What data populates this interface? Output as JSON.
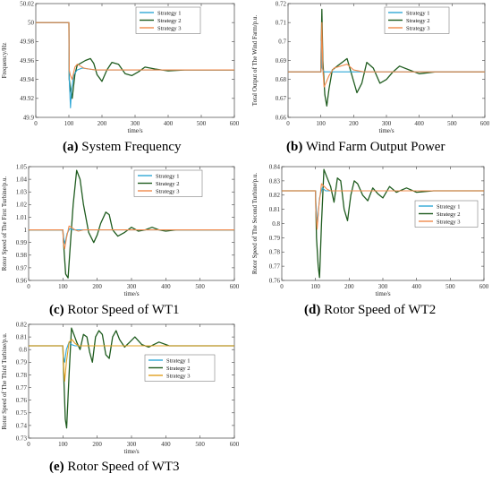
{
  "chart_data": [
    {
      "id": "a",
      "type": "line",
      "caption_letter": "(a)",
      "caption_text": "System Frequency",
      "title": "",
      "xlabel": "time/s",
      "ylabel": "Frequency/Hz",
      "xlim": [
        0,
        600
      ],
      "ylim": [
        49.9,
        50.02
      ],
      "xticks": [
        0,
        100,
        200,
        300,
        400,
        500,
        600
      ],
      "yticks": [
        49.9,
        49.92,
        49.94,
        49.96,
        49.98,
        50,
        50.02
      ],
      "ytick_labels": [
        "49.9",
        "49.92",
        "49.94",
        "49.96",
        "49.98",
        "50",
        "50.02"
      ],
      "grid": false,
      "legend_position": "top-right",
      "colors": [
        "#2fa7d6",
        "#1f5c1f",
        "#f08a4b"
      ],
      "series": [
        {
          "name": "Strategy 1",
          "x": [
            0,
            100,
            101,
            105,
            108,
            115,
            125,
            140,
            160,
            180,
            200,
            230,
            300,
            600
          ],
          "y": [
            50,
            50,
            49.94,
            49.91,
            49.93,
            49.945,
            49.95,
            49.952,
            49.951,
            49.95,
            49.95,
            49.95,
            49.95,
            49.95
          ]
        },
        {
          "name": "Strategy 2",
          "x": [
            0,
            100,
            101,
            105,
            110,
            118,
            125,
            135,
            150,
            165,
            175,
            185,
            200,
            215,
            230,
            250,
            270,
            290,
            310,
            330,
            360,
            400,
            450,
            500,
            600
          ],
          "y": [
            50,
            50,
            49.94,
            49.93,
            49.92,
            49.945,
            49.955,
            49.957,
            49.96,
            49.962,
            49.957,
            49.945,
            49.938,
            49.95,
            49.958,
            49.956,
            49.946,
            49.944,
            49.948,
            49.953,
            49.951,
            49.949,
            49.95,
            49.95,
            49.95
          ]
        },
        {
          "name": "Strategy 3",
          "x": [
            0,
            100,
            101,
            104,
            110,
            118,
            125,
            135,
            145,
            160,
            180,
            200,
            300,
            600
          ],
          "y": [
            50,
            50,
            49.95,
            49.945,
            49.94,
            49.953,
            49.956,
            49.954,
            49.952,
            49.951,
            49.95,
            49.95,
            49.95,
            49.95
          ]
        }
      ]
    },
    {
      "id": "b",
      "type": "line",
      "caption_letter": "(b)",
      "caption_text": "Wind Farm Output Power",
      "title": "",
      "xlabel": "time/s",
      "ylabel": "Total Output of The Wind Farm/p.u.",
      "xlim": [
        0,
        600
      ],
      "ylim": [
        0.66,
        0.72
      ],
      "xticks": [
        0,
        100,
        200,
        300,
        400,
        500,
        600
      ],
      "yticks": [
        0.66,
        0.67,
        0.68,
        0.69,
        0.7,
        0.71,
        0.72
      ],
      "ytick_labels": [
        "0.66",
        "0.67",
        "0.68",
        "0.69",
        "0.7",
        "0.71",
        "0.72"
      ],
      "grid": false,
      "legend_position": "top-right",
      "colors": [
        "#2fa7d6",
        "#1f5c1f",
        "#f08a4b"
      ],
      "series": [
        {
          "name": "Strategy 1",
          "x": [
            0,
            100,
            101,
            104,
            110,
            120,
            140,
            600
          ],
          "y": [
            0.684,
            0.684,
            0.7,
            0.686,
            0.684,
            0.684,
            0.684,
            0.684
          ]
        },
        {
          "name": "Strategy 2",
          "x": [
            0,
            100,
            103,
            106,
            112,
            118,
            125,
            135,
            150,
            165,
            180,
            195,
            210,
            225,
            240,
            260,
            280,
            300,
            320,
            340,
            370,
            400,
            450,
            500,
            600
          ],
          "y": [
            0.684,
            0.684,
            0.717,
            0.69,
            0.672,
            0.666,
            0.675,
            0.685,
            0.687,
            0.689,
            0.691,
            0.682,
            0.673,
            0.678,
            0.689,
            0.686,
            0.678,
            0.68,
            0.684,
            0.687,
            0.685,
            0.683,
            0.684,
            0.684,
            0.684
          ]
        },
        {
          "name": "Strategy 3",
          "x": [
            0,
            100,
            103,
            106,
            110,
            115,
            125,
            140,
            160,
            180,
            200,
            230,
            300,
            600
          ],
          "y": [
            0.684,
            0.684,
            0.71,
            0.685,
            0.676,
            0.678,
            0.682,
            0.686,
            0.687,
            0.688,
            0.685,
            0.684,
            0.684,
            0.684
          ]
        }
      ]
    },
    {
      "id": "c",
      "type": "line",
      "caption_letter": "(c)",
      "caption_text": "Rotor Speed of WT1",
      "title": "",
      "xlabel": "time/s",
      "ylabel": "Rotor Speed of The First Turbine/p.u.",
      "xlim": [
        0,
        600
      ],
      "ylim": [
        0.96,
        1.05
      ],
      "xticks": [
        0,
        100,
        200,
        300,
        400,
        500,
        600
      ],
      "yticks": [
        0.96,
        0.97,
        0.98,
        0.99,
        1,
        1.01,
        1.02,
        1.03,
        1.04,
        1.05
      ],
      "ytick_labels": [
        "0.96",
        "0.97",
        "0.98",
        "0.99",
        "1",
        "1.01",
        "1.02",
        "1.03",
        "1.04",
        "1.05"
      ],
      "grid": false,
      "legend_position": "top-right",
      "colors": [
        "#2fa7d6",
        "#1f5c1f",
        "#f08a4b"
      ],
      "series": [
        {
          "name": "Strategy 1",
          "x": [
            0,
            100,
            101,
            106,
            112,
            120,
            130,
            600
          ],
          "y": [
            1,
            1,
            0.995,
            0.989,
            0.997,
            1.001,
            1,
            1
          ]
        },
        {
          "name": "Strategy 2",
          "x": [
            0,
            100,
            103,
            108,
            115,
            122,
            130,
            140,
            150,
            160,
            175,
            190,
            200,
            210,
            225,
            235,
            245,
            260,
            280,
            300,
            320,
            340,
            360,
            380,
            400,
            430,
            460,
            500,
            600
          ],
          "y": [
            1,
            1,
            0.985,
            0.965,
            0.962,
            0.99,
            1.02,
            1.047,
            1.04,
            1.02,
            0.998,
            0.99,
            0.996,
            1.005,
            1.014,
            1.012,
            1.0,
            0.995,
            0.998,
            1.002,
            0.999,
            1.0,
            1.002,
            1.0,
            0.999,
            1.0,
            1.0,
            1.0,
            1.0
          ]
        },
        {
          "name": "Strategy 3",
          "x": [
            0,
            100,
            101,
            105,
            110,
            118,
            125,
            135,
            145,
            160,
            180,
            600
          ],
          "y": [
            1,
            1,
            0.99,
            0.985,
            0.993,
            1.003,
            1.002,
            1.0,
            0.999,
            1.0,
            1.0,
            1.0
          ]
        }
      ]
    },
    {
      "id": "d",
      "type": "line",
      "caption_letter": "(d)",
      "caption_text": "Rotor Speed of WT2",
      "title": "",
      "xlabel": "time/s",
      "ylabel": "Rotor Speed of The Second Turbine/p.u.",
      "xlim": [
        0,
        600
      ],
      "ylim": [
        0.76,
        0.84
      ],
      "xticks": [
        0,
        100,
        200,
        300,
        400,
        500,
        600
      ],
      "yticks": [
        0.76,
        0.77,
        0.78,
        0.79,
        0.8,
        0.81,
        0.82,
        0.83,
        0.84
      ],
      "ytick_labels": [
        "0.76",
        "0.77",
        "0.78",
        "0.79",
        "0.8",
        "0.81",
        "0.82",
        "0.83",
        "0.84"
      ],
      "grid": false,
      "legend_position": "right",
      "colors": [
        "#2fa7d6",
        "#1f5c1f",
        "#f08a4b"
      ],
      "series": [
        {
          "name": "Strategy 1",
          "x": [
            0,
            100,
            101,
            106,
            112,
            120,
            130,
            600
          ],
          "y": [
            0.823,
            0.823,
            0.815,
            0.8,
            0.818,
            0.825,
            0.823,
            0.823
          ]
        },
        {
          "name": "Strategy 2",
          "x": [
            0,
            100,
            103,
            108,
            112,
            118,
            125,
            135,
            145,
            155,
            165,
            175,
            185,
            195,
            205,
            215,
            225,
            240,
            255,
            270,
            285,
            300,
            320,
            340,
            370,
            400,
            450,
            500,
            600
          ],
          "y": [
            0.823,
            0.823,
            0.79,
            0.77,
            0.762,
            0.8,
            0.838,
            0.832,
            0.826,
            0.815,
            0.832,
            0.83,
            0.81,
            0.802,
            0.82,
            0.83,
            0.828,
            0.82,
            0.816,
            0.825,
            0.821,
            0.818,
            0.826,
            0.822,
            0.825,
            0.822,
            0.823,
            0.823,
            0.823
          ]
        },
        {
          "name": "Strategy 3",
          "x": [
            0,
            100,
            101,
            105,
            110,
            118,
            126,
            135,
            145,
            160,
            180,
            600
          ],
          "y": [
            0.823,
            0.823,
            0.81,
            0.796,
            0.812,
            0.828,
            0.826,
            0.824,
            0.823,
            0.823,
            0.823,
            0.823
          ]
        }
      ]
    },
    {
      "id": "e",
      "type": "line",
      "caption_letter": "(e)",
      "caption_text": "Rotor Speed of WT3",
      "title": "",
      "xlabel": "time/s",
      "ylabel": "Rotor Speed of The Third Turbine/p.u.",
      "xlim": [
        0,
        600
      ],
      "ylim": [
        0.73,
        0.82
      ],
      "xticks": [
        0,
        100,
        200,
        300,
        400,
        500,
        600
      ],
      "yticks": [
        0.73,
        0.74,
        0.75,
        0.76,
        0.77,
        0.78,
        0.79,
        0.8,
        0.81,
        0.82
      ],
      "ytick_labels": [
        "0.73",
        "0.74",
        "0.75",
        "0.76",
        "0.77",
        "0.78",
        "0.79",
        "0.8",
        "0.81",
        "0.82"
      ],
      "grid": false,
      "legend_position": "right",
      "colors": [
        "#2fa7d6",
        "#1f5c1f",
        "#e0a020"
      ],
      "series": [
        {
          "name": "Strategy 1",
          "x": [
            0,
            100,
            101,
            105,
            110,
            118,
            125,
            135,
            600
          ],
          "y": [
            0.803,
            0.803,
            0.795,
            0.79,
            0.8,
            0.806,
            0.804,
            0.803,
            0.803
          ]
        },
        {
          "name": "Strategy 2",
          "x": [
            0,
            100,
            103,
            107,
            111,
            118,
            125,
            132,
            140,
            150,
            160,
            170,
            178,
            186,
            195,
            205,
            215,
            225,
            235,
            245,
            255,
            265,
            280,
            295,
            310,
            330,
            350,
            380,
            410,
            450,
            500,
            600
          ],
          "y": [
            0.803,
            0.803,
            0.775,
            0.745,
            0.738,
            0.78,
            0.817,
            0.812,
            0.806,
            0.8,
            0.812,
            0.81,
            0.798,
            0.79,
            0.81,
            0.815,
            0.812,
            0.796,
            0.793,
            0.81,
            0.815,
            0.808,
            0.802,
            0.806,
            0.81,
            0.804,
            0.802,
            0.806,
            0.803,
            0.803,
            0.803,
            0.803
          ]
        },
        {
          "name": "Strategy 3",
          "x": [
            0,
            100,
            101,
            105,
            110,
            118,
            126,
            135,
            145,
            160,
            180,
            600
          ],
          "y": [
            0.803,
            0.803,
            0.79,
            0.775,
            0.79,
            0.806,
            0.808,
            0.805,
            0.803,
            0.803,
            0.803,
            0.803
          ]
        }
      ]
    }
  ]
}
